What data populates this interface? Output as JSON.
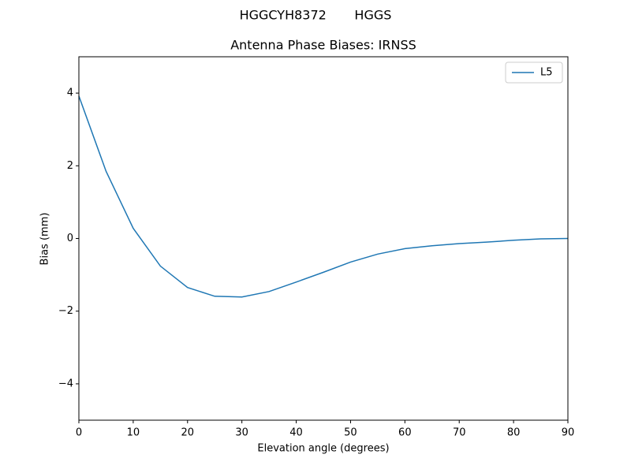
{
  "chart_data": {
    "type": "line",
    "suptitle": "HGGCYH8372       HGGS",
    "title": "Antenna Phase Biases: IRNSS",
    "xlabel": "Elevation angle (degrees)",
    "ylabel": "Bias (mm)",
    "x": [
      0,
      5,
      10,
      15,
      20,
      25,
      30,
      35,
      40,
      45,
      50,
      55,
      60,
      65,
      70,
      75,
      80,
      85,
      90
    ],
    "series": [
      {
        "name": "L5",
        "color": "#1f77b4",
        "values": [
          3.92,
          1.85,
          0.28,
          -0.76,
          -1.35,
          -1.59,
          -1.61,
          -1.46,
          -1.2,
          -0.93,
          -0.65,
          -0.43,
          -0.28,
          -0.2,
          -0.14,
          -0.1,
          -0.05,
          -0.01,
          0
        ]
      }
    ],
    "xlim": [
      0,
      90
    ],
    "xticks": [
      0,
      10,
      20,
      30,
      40,
      50,
      60,
      70,
      80,
      90
    ],
    "ylim": [
      -5,
      5
    ],
    "yticks": [
      {
        "value": -4,
        "label": "−4"
      },
      {
        "value": -2,
        "label": "−2"
      },
      0,
      2,
      4
    ],
    "legend": "upper right"
  }
}
